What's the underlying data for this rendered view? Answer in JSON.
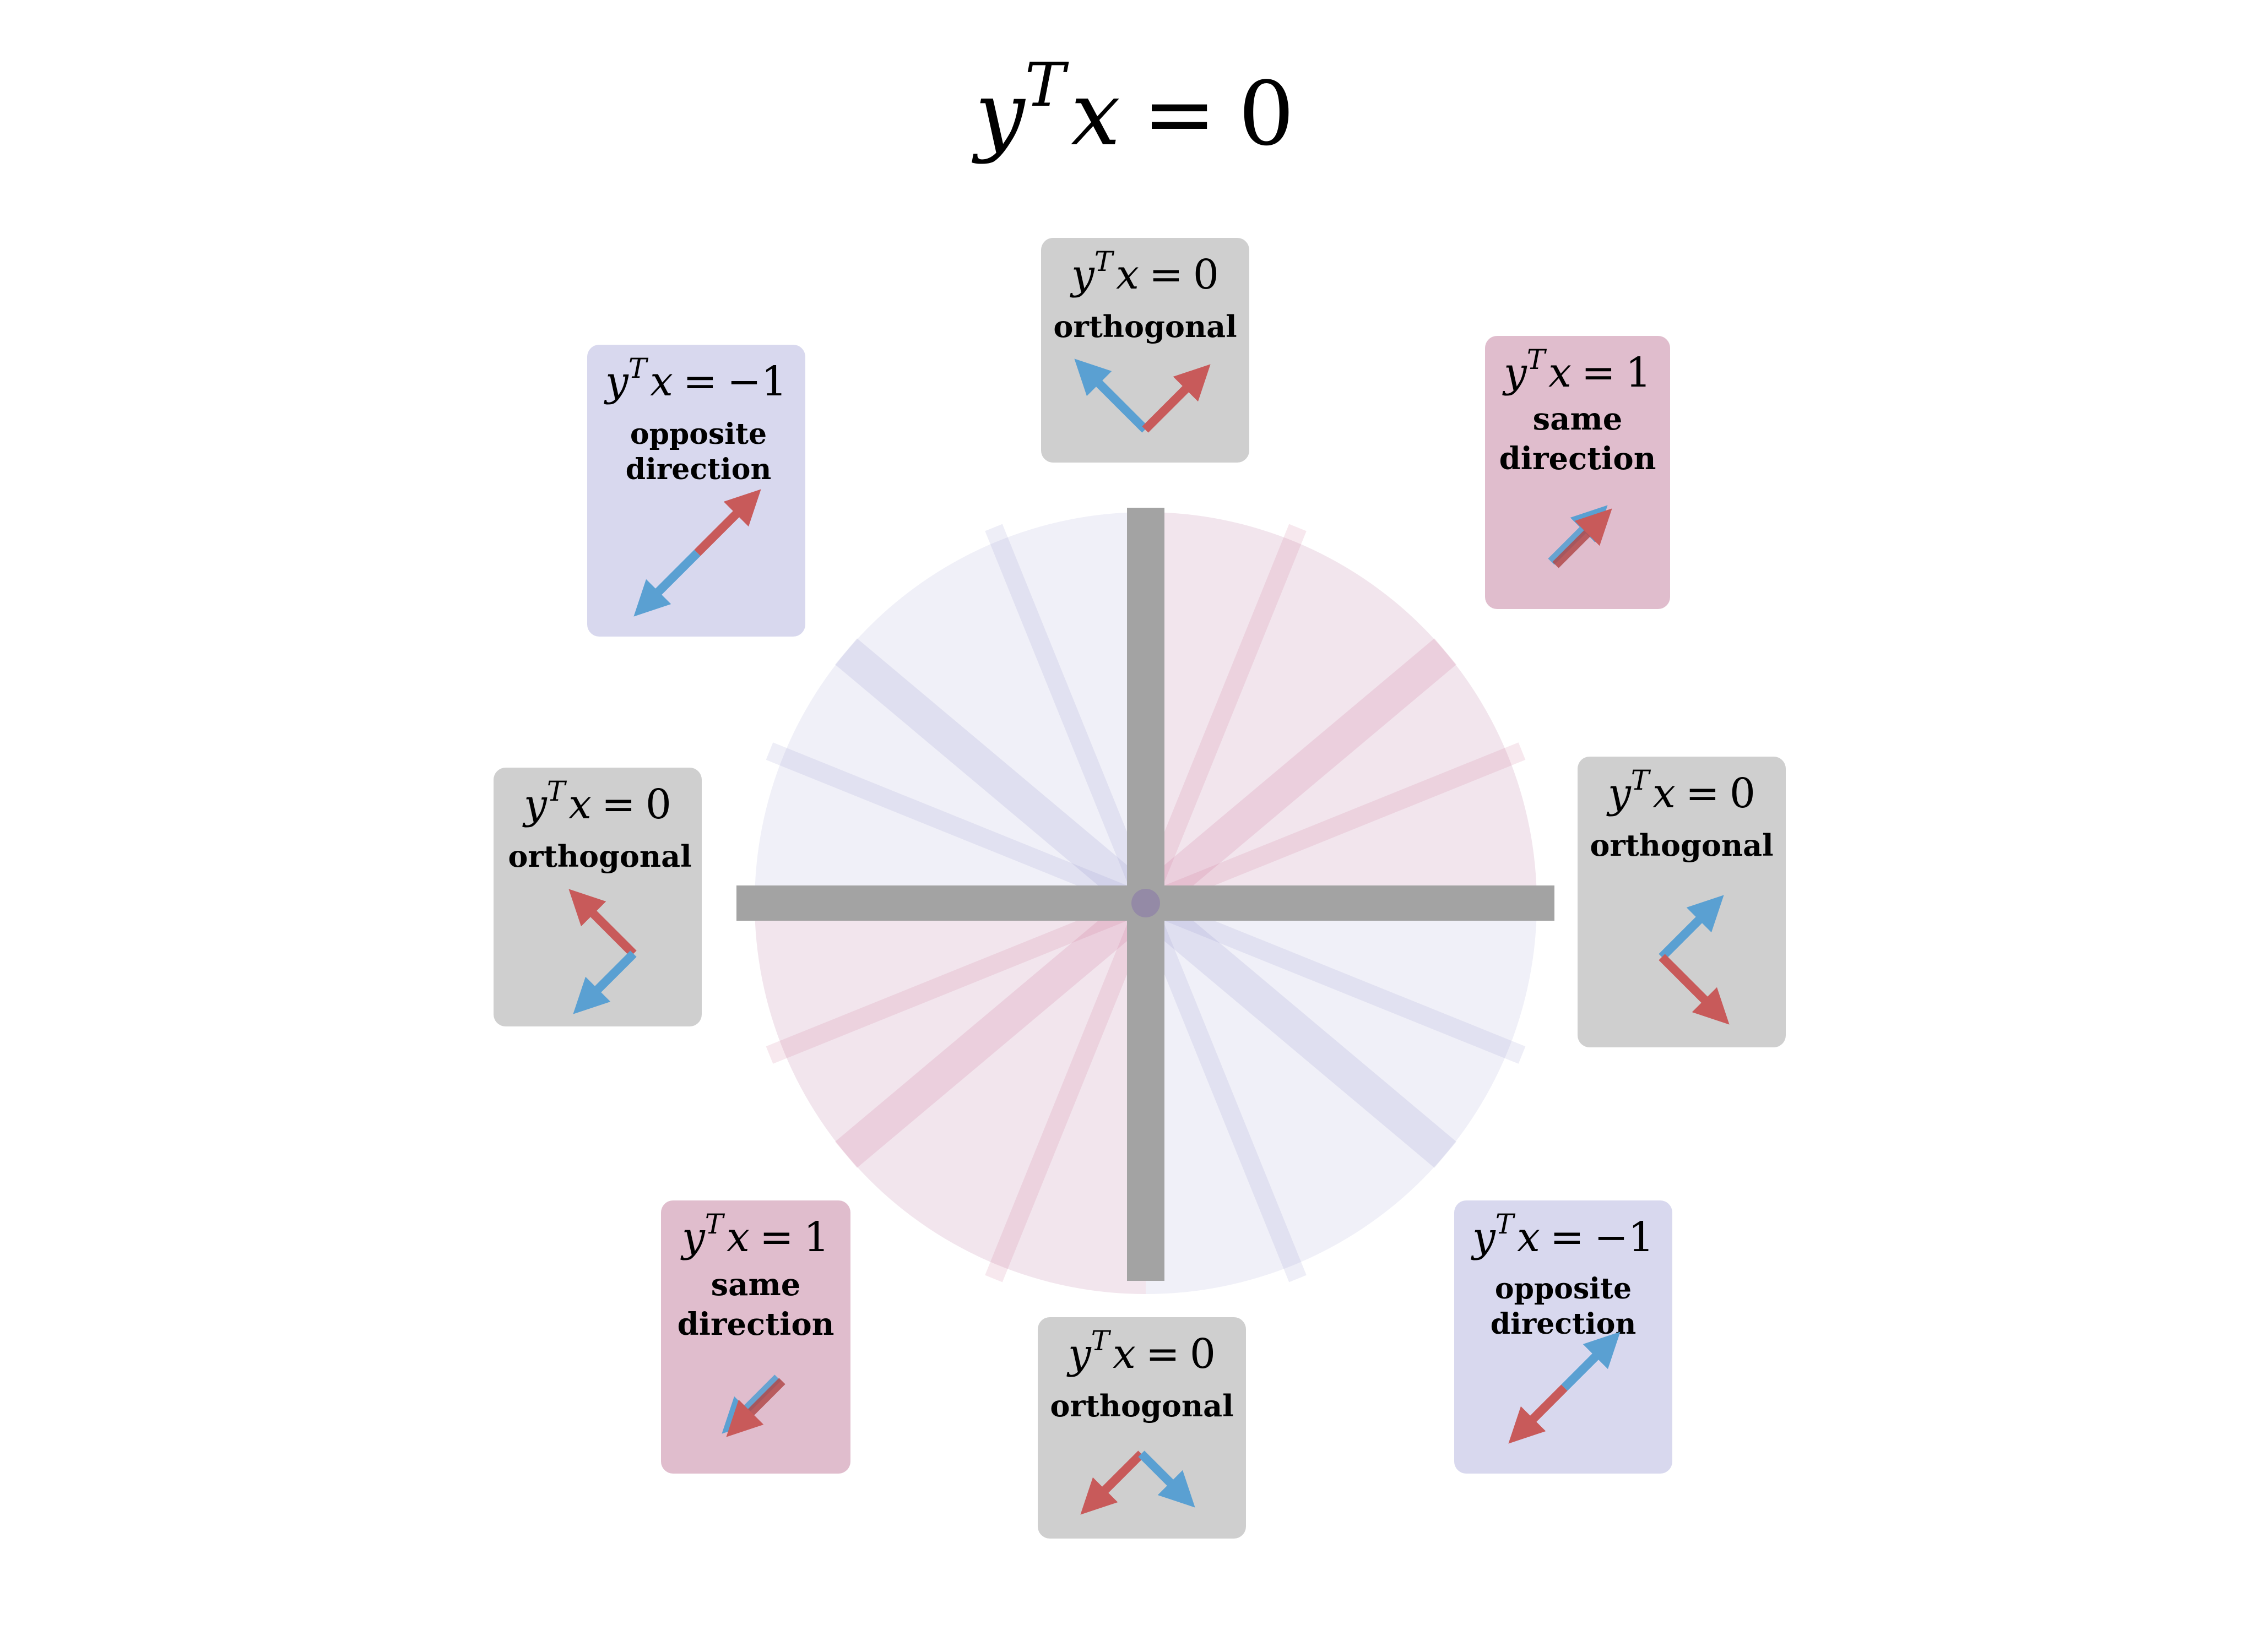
{
  "title": {
    "var_y": "y",
    "sup": "T",
    "var_x": "x",
    "rel": "=",
    "value": "0"
  },
  "colors": {
    "same": "#c85a5a",
    "opposite": "#5aa0d2",
    "same_bg": "#e0bdcd",
    "opposite_bg": "#d8d8ee",
    "ortho_bg": "#cfcfcf",
    "axis": "#a3a3a3",
    "red_sector": "#f2e5ed",
    "blue_sector": "#f0f0f8"
  },
  "cards": [
    {
      "id": "top",
      "kind": "orthogonal",
      "eq": {
        "y": "y",
        "sup": "T",
        "x": "x",
        "rel": "=",
        "val": "0"
      },
      "lines": [
        "orthogonal"
      ]
    },
    {
      "id": "top-right",
      "kind": "same",
      "eq": {
        "y": "y",
        "sup": "T",
        "x": "x",
        "rel": "=",
        "val": "1"
      },
      "lines": [
        "same",
        "direction"
      ]
    },
    {
      "id": "right",
      "kind": "orthogonal",
      "eq": {
        "y": "y",
        "sup": "T",
        "x": "x",
        "rel": "=",
        "val": "0"
      },
      "lines": [
        "orthogonal"
      ]
    },
    {
      "id": "bottom-right",
      "kind": "opposite",
      "eq": {
        "y": "y",
        "sup": "T",
        "x": "x",
        "rel": "=",
        "val": "−1"
      },
      "lines": [
        "opposite",
        "direction"
      ]
    },
    {
      "id": "bottom",
      "kind": "orthogonal",
      "eq": {
        "y": "y",
        "sup": "T",
        "x": "x",
        "rel": "=",
        "val": "0"
      },
      "lines": [
        "orthogonal"
      ]
    },
    {
      "id": "bottom-left",
      "kind": "same",
      "eq": {
        "y": "y",
        "sup": "T",
        "x": "x",
        "rel": "=",
        "val": "1"
      },
      "lines": [
        "same",
        "direction"
      ]
    },
    {
      "id": "left",
      "kind": "orthogonal",
      "eq": {
        "y": "y",
        "sup": "T",
        "x": "x",
        "rel": "=",
        "val": "0"
      },
      "lines": [
        "orthogonal"
      ]
    },
    {
      "id": "top-left",
      "kind": "opposite",
      "eq": {
        "y": "y",
        "sup": "T",
        "x": "x",
        "rel": "=",
        "val": "−1"
      },
      "lines": [
        "opposite",
        "direction"
      ]
    }
  ]
}
